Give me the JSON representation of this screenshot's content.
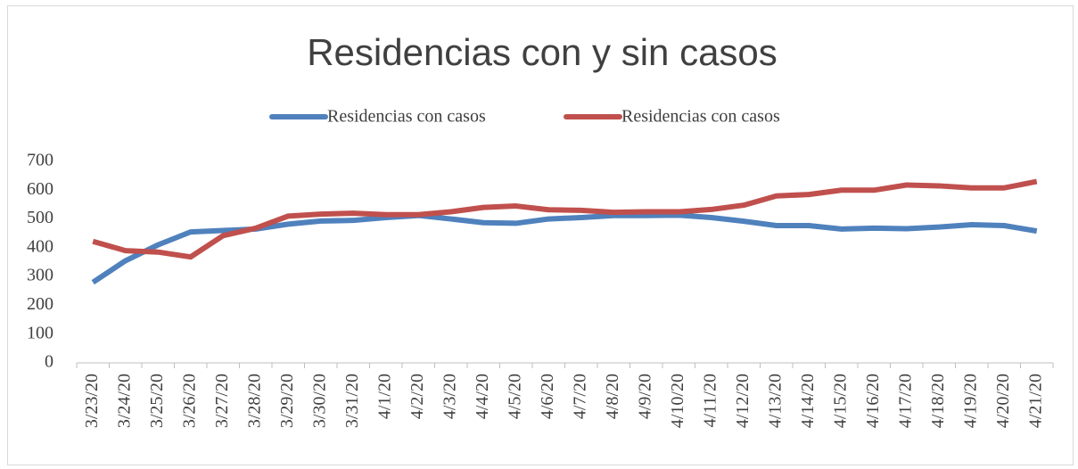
{
  "chart_data": {
    "type": "line",
    "title": "Residencias con y sin casos",
    "categories": [
      "3/23/20",
      "3/24/20",
      "3/25/20",
      "3/26/20",
      "3/27/20",
      "3/28/20",
      "3/29/20",
      "3/30/20",
      "3/31/20",
      "4/1/20",
      "4/2/20",
      "4/3/20",
      "4/4/20",
      "4/5/20",
      "4/6/20",
      "4/7/20",
      "4/8/20",
      "4/9/20",
      "4/10/20",
      "4/11/20",
      "4/12/20",
      "4/13/20",
      "4/14/20",
      "4/15/20",
      "4/16/20",
      "4/17/20",
      "4/18/20",
      "4/19/20",
      "4/20/20",
      "4/21/20"
    ],
    "series": [
      {
        "name": "Residencias con casos",
        "color": "#4f81bd",
        "values": [
          280,
          355,
          410,
          455,
          460,
          465,
          482,
          493,
          495,
          505,
          512,
          500,
          487,
          485,
          500,
          505,
          512,
          512,
          513,
          505,
          492,
          477,
          477,
          465,
          468,
          466,
          472,
          480,
          477,
          458
        ]
      },
      {
        "name": "Residencias con casos",
        "color": "#c0504d",
        "values": [
          422,
          390,
          385,
          368,
          442,
          468,
          510,
          517,
          520,
          515,
          515,
          525,
          540,
          545,
          532,
          530,
          523,
          525,
          525,
          533,
          548,
          580,
          585,
          600,
          600,
          618,
          615,
          608,
          608,
          630
        ]
      }
    ],
    "ylim": [
      0,
      700
    ],
    "yticks": [
      0,
      100,
      200,
      300,
      400,
      500,
      600,
      700
    ],
    "grid": false,
    "legend": "top"
  }
}
